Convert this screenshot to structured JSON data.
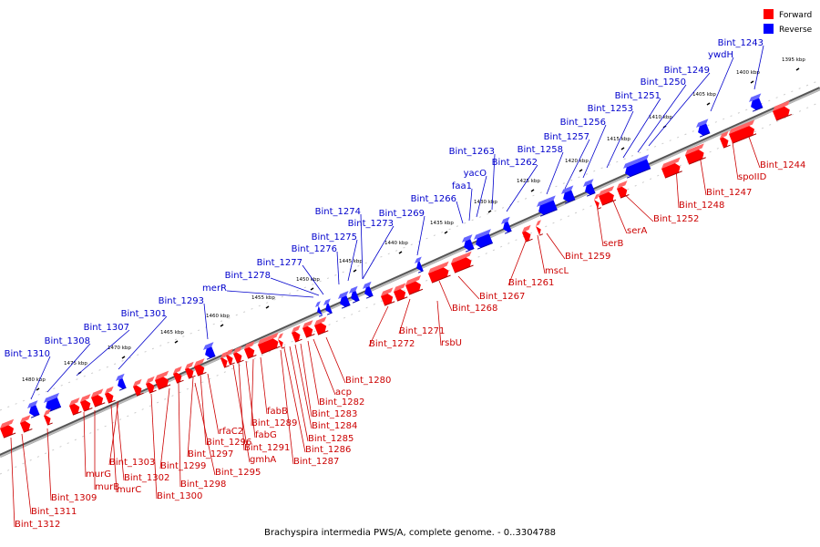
{
  "caption": "Brachyspira intermedia PWS/A, complete genome. - 0..3304788",
  "legend": [
    {
      "label": "Forward",
      "color": "#ff0000"
    },
    {
      "label": "Reverse",
      "color": "#0000ff"
    }
  ],
  "colors": {
    "forward": "#ff0000",
    "reverse": "#0000ff",
    "forward_label": "#cc0000",
    "reverse_label": "#0000cc",
    "axis": "#666666"
  },
  "kbp_ticks": [
    "1395 kbp",
    "1400 kbp",
    "1405 kbp",
    "1410 kbp",
    "1415 kbp",
    "1420 kbp",
    "1425 kbp",
    "1430 kbp",
    "1435 kbp",
    "1440 kbp",
    "1445 kbp",
    "1450 kbp",
    "1455 kbp",
    "1460 kbp",
    "1465 kbp",
    "1470 kbp",
    "1475 kbp",
    "1480 kbp"
  ],
  "reverse_genes": [
    "Bint_1243",
    "ywdH",
    "Bint_1249",
    "Bint_1250",
    "Bint_1251",
    "Bint_1253",
    "Bint_1256",
    "Bint_1257",
    "Bint_1258",
    "Bint_1262",
    "Bint_1263",
    "yacO",
    "faa1",
    "Bint_1266",
    "Bint_1269",
    "Bint_1273",
    "Bint_1274",
    "Bint_1275",
    "Bint_1276",
    "Bint_1277",
    "Bint_1278",
    "merR",
    "Bint_1293",
    "Bint_1301",
    "Bint_1307",
    "Bint_1308",
    "Bint_1310"
  ],
  "forward_genes": [
    "Bint_1244",
    "spoIID",
    "Bint_1247",
    "Bint_1248",
    "Bint_1252",
    "serA",
    "serB",
    "Bint_1259",
    "mscL",
    "Bint_1261",
    "Bint_1267",
    "Bint_1268",
    "rsbU",
    "Bint_1271",
    "Bint_1272",
    "Bint_1280",
    "acp",
    "Bint_1282",
    "Bint_1283",
    "Bint_1284",
    "Bint_1285",
    "Bint_1286",
    "Bint_1287",
    "fabB",
    "Bint_1289",
    "fabG",
    "Bint_1291",
    "gmhA",
    "rfaC2",
    "Bint_1296",
    "Bint_1297",
    "Bint_1295",
    "Bint_1298",
    "Bint_1299",
    "Bint_1300",
    "Bint_1303",
    "Bint_1302",
    "murC",
    "murB",
    "murG",
    "Bint_1309",
    "Bint_1311",
    "Bint_1312"
  ]
}
